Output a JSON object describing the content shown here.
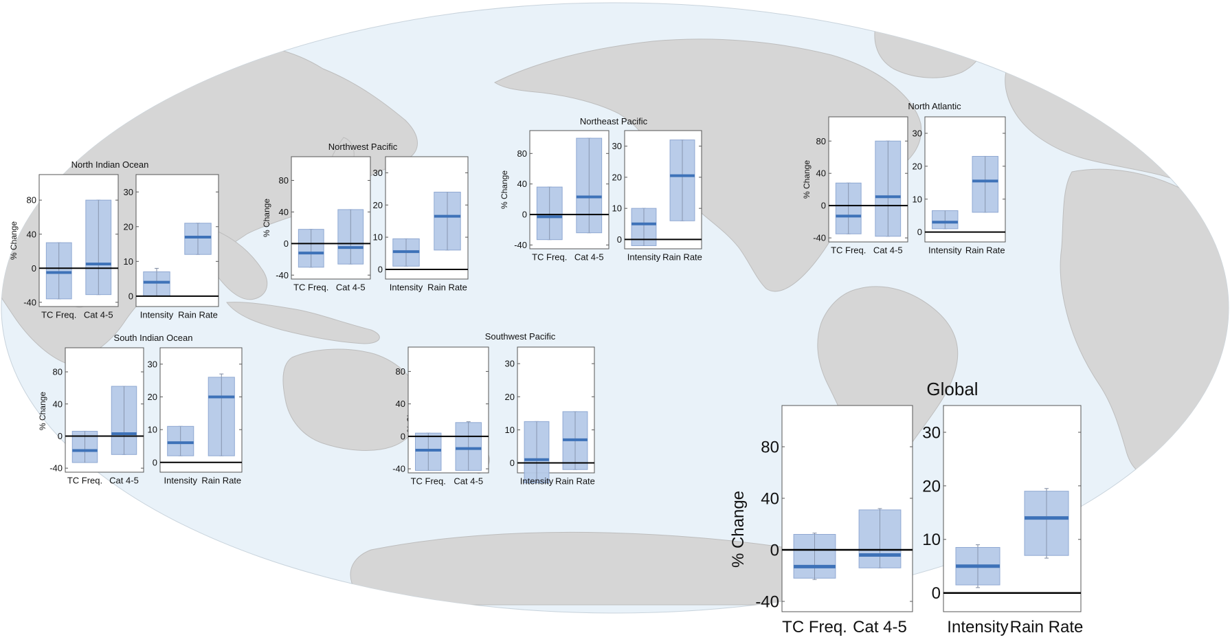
{
  "map": {
    "ocean_color": "#e9f2f9",
    "land_color": "#d6d6d6",
    "land_edge_color": "#bdbdbd"
  },
  "style": {
    "box_fill": "#b5c9e8",
    "box_edge": "#8fa8d2",
    "median_color": "#3e72b8",
    "whisker_color": "#7e8aa0",
    "zero_line_color": "#000000"
  },
  "chart_data": [
    {
      "type": "box",
      "title": "North Indian Ocean",
      "ylabel": "% Change",
      "left_panel": {
        "categories": [
          "TC Freq.",
          "Cat 4-5"
        ],
        "ylim": [
          -45,
          110
        ],
        "yticks": [
          -40,
          0,
          40,
          80
        ],
        "boxes": [
          {
            "whisker_low": -36,
            "q1": -36,
            "median": -5,
            "q3": 30,
            "whisker_high": 30
          },
          {
            "whisker_low": -31,
            "q1": -31,
            "median": 5,
            "q3": 80,
            "whisker_high": 80
          }
        ]
      },
      "right_panel": {
        "categories": [
          "Intensity",
          "Rain Rate"
        ],
        "ylim": [
          -3,
          35
        ],
        "yticks": [
          0,
          10,
          20,
          30
        ],
        "boxes": [
          {
            "whisker_low": 0,
            "q1": 0,
            "median": 4,
            "q3": 7,
            "whisker_high": 8
          },
          {
            "whisker_low": 12,
            "q1": 12,
            "median": 17,
            "q3": 21,
            "whisker_high": 21
          }
        ]
      }
    },
    {
      "type": "box",
      "title": "Northwest Pacific",
      "ylabel": "% Change",
      "left_panel": {
        "categories": [
          "TC Freq.",
          "Cat 4-5"
        ],
        "ylim": [
          -45,
          110
        ],
        "yticks": [
          -40,
          0,
          40,
          80
        ],
        "boxes": [
          {
            "whisker_low": -30,
            "q1": -30,
            "median": -12,
            "q3": 18,
            "whisker_high": 18
          },
          {
            "whisker_low": -26,
            "q1": -26,
            "median": -5,
            "q3": 43,
            "whisker_high": 43
          }
        ]
      },
      "right_panel": {
        "categories": [
          "Intensity",
          "Rain Rate"
        ],
        "ylim": [
          -3,
          35
        ],
        "yticks": [
          0,
          10,
          20,
          30
        ],
        "boxes": [
          {
            "whisker_low": 1,
            "q1": 1,
            "median": 5.5,
            "q3": 9.5,
            "whisker_high": 9.5
          },
          {
            "whisker_low": 6,
            "q1": 6,
            "median": 16.5,
            "q3": 24,
            "whisker_high": 24
          }
        ]
      }
    },
    {
      "type": "box",
      "title": "Northeast Pacific",
      "ylabel": "% Change",
      "left_panel": {
        "categories": [
          "TC Freq.",
          "Cat 4-5"
        ],
        "ylim": [
          -45,
          110
        ],
        "yticks": [
          -40,
          0,
          40,
          80
        ],
        "boxes": [
          {
            "whisker_low": -33,
            "q1": -33,
            "median": -3,
            "q3": 36,
            "whisker_high": 36
          },
          {
            "whisker_low": -24,
            "q1": -24,
            "median": 23,
            "q3": 100,
            "whisker_high": 100
          }
        ]
      },
      "right_panel": {
        "categories": [
          "Intensity",
          "Rain Rate"
        ],
        "ylim": [
          -3,
          35
        ],
        "yticks": [
          0,
          10,
          20,
          30
        ],
        "boxes": [
          {
            "whisker_low": -2,
            "q1": -2,
            "median": 5,
            "q3": 10,
            "whisker_high": 10
          },
          {
            "whisker_low": 6,
            "q1": 6,
            "median": 20.5,
            "q3": 32,
            "whisker_high": 32
          }
        ]
      }
    },
    {
      "type": "box",
      "title": "North Atlantic",
      "ylabel": "% Change",
      "left_panel": {
        "categories": [
          "TC Freq.",
          "Cat 4-5"
        ],
        "ylim": [
          -45,
          110
        ],
        "yticks": [
          -40,
          0,
          40,
          80
        ],
        "boxes": [
          {
            "whisker_low": -35,
            "q1": -35,
            "median": -13,
            "q3": 28,
            "whisker_high": 28
          },
          {
            "whisker_low": -38,
            "q1": -38,
            "median": 11,
            "q3": 80,
            "whisker_high": 80
          }
        ]
      },
      "right_panel": {
        "categories": [
          "Intensity",
          "Rain Rate"
        ],
        "ylim": [
          -3,
          35
        ],
        "yticks": [
          0,
          10,
          20,
          30
        ],
        "boxes": [
          {
            "whisker_low": 1,
            "q1": 1,
            "median": 3,
            "q3": 6.5,
            "whisker_high": 6.5
          },
          {
            "whisker_low": 6,
            "q1": 6,
            "median": 15.5,
            "q3": 23,
            "whisker_high": 23
          }
        ]
      }
    },
    {
      "type": "box",
      "title": "South Indian Ocean",
      "ylabel": "% Change",
      "left_panel": {
        "categories": [
          "TC Freq.",
          "Cat 4-5"
        ],
        "ylim": [
          -45,
          110
        ],
        "yticks": [
          -40,
          0,
          40,
          80
        ],
        "boxes": [
          {
            "whisker_low": -33,
            "q1": -33,
            "median": -18,
            "q3": 6,
            "whisker_high": 6
          },
          {
            "whisker_low": -23,
            "q1": -23,
            "median": 3,
            "q3": 62,
            "whisker_high": 62
          }
        ]
      },
      "right_panel": {
        "categories": [
          "Intensity",
          "Rain Rate"
        ],
        "ylim": [
          -3,
          35
        ],
        "yticks": [
          0,
          10,
          20,
          30
        ],
        "boxes": [
          {
            "whisker_low": 2,
            "q1": 2,
            "median": 6,
            "q3": 11,
            "whisker_high": 11
          },
          {
            "whisker_low": 2,
            "q1": 2,
            "median": 20,
            "q3": 26,
            "whisker_high": 27
          }
        ]
      }
    },
    {
      "type": "box",
      "title": "Southwest Pacific",
      "ylabel": "% Change",
      "left_panel": {
        "categories": [
          "TC Freq.",
          "Cat 4-5"
        ],
        "ylim": [
          -45,
          110
        ],
        "yticks": [
          -40,
          0,
          40,
          80
        ],
        "boxes": [
          {
            "whisker_low": -42,
            "q1": -42,
            "median": -17,
            "q3": 4,
            "whisker_high": 4
          },
          {
            "whisker_low": -42,
            "q1": -42,
            "median": -15,
            "q3": 17,
            "whisker_high": 18
          }
        ]
      },
      "right_panel": {
        "categories": [
          "Intensity",
          "Rain Rate"
        ],
        "ylim": [
          -3,
          35
        ],
        "yticks": [
          0,
          10,
          20,
          30
        ],
        "boxes": [
          {
            "whisker_low": -6,
            "q1": -6,
            "median": 1,
            "q3": 12.5,
            "whisker_high": 12.5
          },
          {
            "whisker_low": -2,
            "q1": -2,
            "median": 7,
            "q3": 15.5,
            "whisker_high": 15.5
          }
        ]
      }
    },
    {
      "type": "box",
      "title": "Global",
      "ylabel": "% Change",
      "left_panel": {
        "categories": [
          "TC Freq.",
          "Cat 4-5"
        ],
        "ylim": [
          -48,
          112
        ],
        "yticks": [
          -40,
          0,
          40,
          80
        ],
        "boxes": [
          {
            "whisker_low": -23,
            "q1": -22,
            "median": -13,
            "q3": 12,
            "whisker_high": 13
          },
          {
            "whisker_low": -14,
            "q1": -14,
            "median": -4,
            "q3": 31,
            "whisker_high": 32
          }
        ]
      },
      "right_panel": {
        "categories": [
          "Intensity",
          "Rain Rate"
        ],
        "ylim": [
          -3.5,
          35
        ],
        "yticks": [
          0,
          10,
          20,
          30
        ],
        "boxes": [
          {
            "whisker_low": 1,
            "q1": 1.5,
            "median": 5,
            "q3": 8.5,
            "whisker_high": 9
          },
          {
            "whisker_low": 6.5,
            "q1": 7,
            "median": 14,
            "q3": 19,
            "whisker_high": 19.5
          }
        ]
      }
    }
  ]
}
